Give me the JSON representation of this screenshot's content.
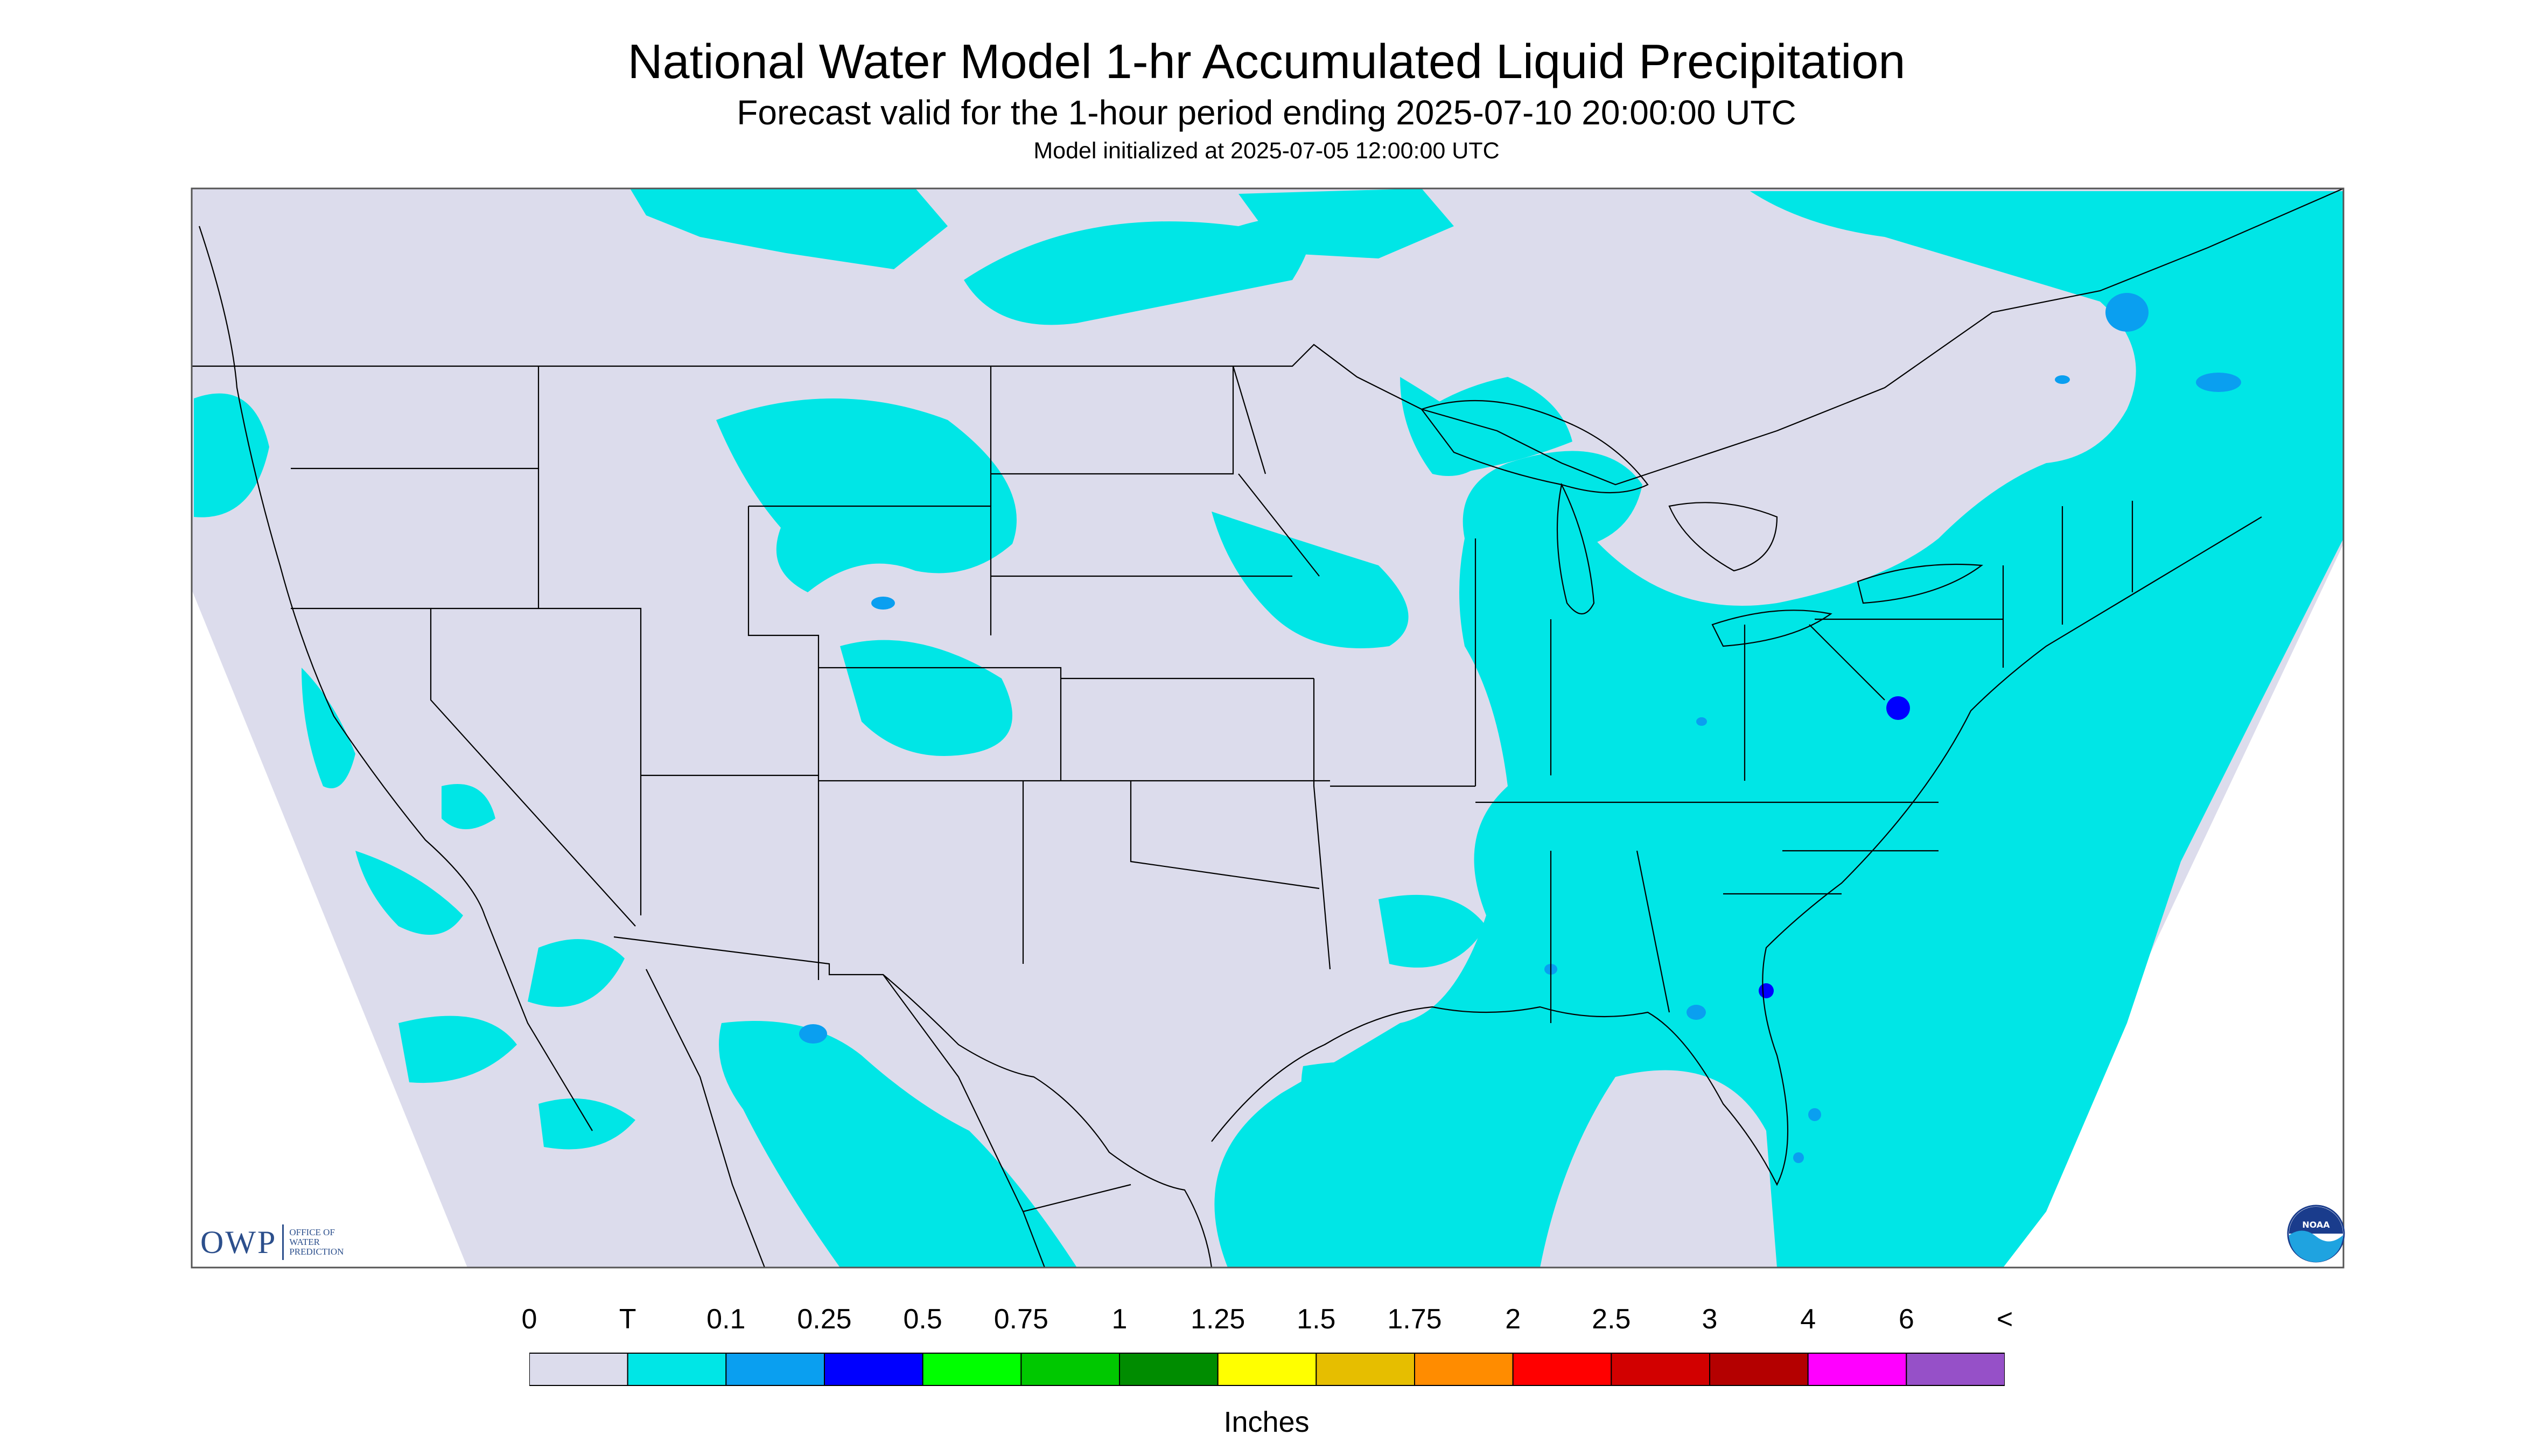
{
  "header": {
    "title": "National Water Model 1-hr Accumulated Liquid Precipitation",
    "subtitle": "Forecast valid for the 1-hour period ending 2025-07-10 20:00:00 UTC",
    "model_init": "Model initialized at 2025-07-05 12:00:00 UTC"
  },
  "logos": {
    "owp_mark": "OWP",
    "owp_text_lines": [
      "OFFICE OF",
      "WATER",
      "PREDICTION"
    ],
    "noaa_text": "NOAA"
  },
  "legend": {
    "tick_labels": [
      "0",
      "T",
      "0.1",
      "0.25",
      "0.5",
      "0.75",
      "1",
      "1.25",
      "1.5",
      "1.75",
      "2",
      "2.5",
      "3",
      "4",
      "6",
      "<"
    ],
    "colors": [
      "#dcdcec",
      "#00e6e6",
      "#0a9ff0",
      "#0000ff",
      "#00ff00",
      "#00c800",
      "#008c00",
      "#ffff00",
      "#e6be00",
      "#ff8c00",
      "#ff0000",
      "#d20000",
      "#b40000",
      "#ff00ff",
      "#9650c8"
    ],
    "units": "Inches"
  },
  "map_colors": {
    "nodata": "#ffffff",
    "base": "#dcdcec",
    "trace": "#00e6e6",
    "light": "#0a9ff0",
    "moderate": "#0000ff",
    "boundary": "#000000"
  },
  "map_features": {
    "projection": "Lambert conformal (CONUS)",
    "boundaries": [
      "US states",
      "Canada provinces",
      "Mexico states",
      "coastlines",
      "Great Lakes"
    ]
  }
}
